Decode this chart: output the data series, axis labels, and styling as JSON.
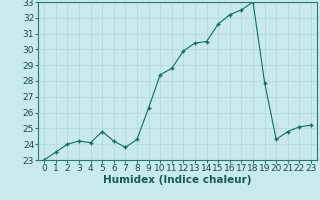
{
  "x": [
    0,
    1,
    2,
    3,
    4,
    5,
    6,
    7,
    8,
    9,
    10,
    11,
    12,
    13,
    14,
    15,
    16,
    17,
    18,
    19,
    20,
    21,
    22,
    23
  ],
  "y": [
    23.0,
    23.5,
    24.0,
    24.2,
    24.1,
    24.8,
    24.2,
    23.8,
    24.3,
    26.3,
    28.4,
    28.8,
    29.9,
    30.4,
    30.5,
    31.6,
    32.2,
    32.5,
    33.0,
    27.9,
    24.3,
    24.8,
    25.1,
    25.2
  ],
  "line_color": "#1a6b5a",
  "marker_color": "#1a6b5a",
  "bg_color": "#c8eaea",
  "grid_color": "#b0d8d8",
  "xlabel": "Humidex (Indice chaleur)",
  "xlabel_fontsize": 7.5,
  "tick_fontsize": 6.5,
  "xlim": [
    -0.5,
    23.5
  ],
  "ylim": [
    23,
    33
  ],
  "yticks": [
    23,
    24,
    25,
    26,
    27,
    28,
    29,
    30,
    31,
    32,
    33
  ],
  "xticks": [
    0,
    1,
    2,
    3,
    4,
    5,
    6,
    7,
    8,
    9,
    10,
    11,
    12,
    13,
    14,
    15,
    16,
    17,
    18,
    19,
    20,
    21,
    22,
    23
  ]
}
